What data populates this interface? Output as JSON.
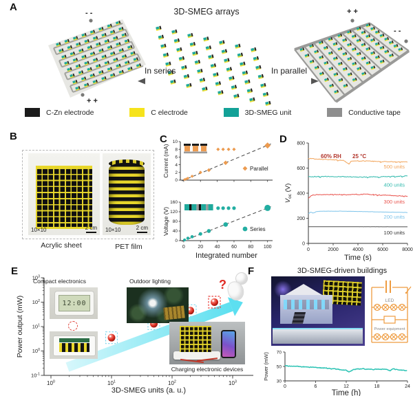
{
  "panel_a": {
    "label": "A",
    "title": "3D-SMEG arrays",
    "left_arrow_label": "In series",
    "right_arrow_label": "In parallel",
    "left_array": {
      "top_terminal": "- -",
      "bottom_terminal": "+ +"
    },
    "right_array": {
      "top_terminal": "+ +",
      "right_terminal": "- -"
    },
    "legend": [
      {
        "label": "C-Zn electrode",
        "color": "#1b1b1b"
      },
      {
        "label": "C electrode",
        "color": "#f6e31c"
      },
      {
        "label": "3D-SMEG unit",
        "color": "#13a197"
      },
      {
        "label": "Conductive tape",
        "color": "#8e8e8e"
      }
    ]
  },
  "panel_b": {
    "label": "B",
    "photos": [
      {
        "grid_label": "10×10",
        "scale_label": "2 cm",
        "caption": "Acrylic sheet"
      },
      {
        "grid_label": "10×10",
        "scale_label": "2 cm",
        "caption": "PET film"
      }
    ]
  },
  "panel_c": {
    "label": "C"
  },
  "panel_d": {
    "label": "D"
  },
  "panel_e": {
    "label": "E",
    "insets": {
      "compact": "Compact electronics",
      "outdoor": "Outdoor lighting",
      "charging": "Charging electronic devices",
      "clock_display": "12:00",
      "question_mark": "?"
    }
  },
  "panel_f": {
    "label": "F",
    "title": "3D-SMEG-driven buildings",
    "circuit": {
      "led_label": "LED",
      "equipment_label": "Power equipment"
    }
  },
  "chart_data": [
    {
      "id": "c-top",
      "type": "scatter",
      "marker": "diamond",
      "color": "#EC9B50",
      "ylabel": "Current (mA)",
      "ylim": [
        0,
        10
      ],
      "yticks": [
        0,
        2,
        4,
        6,
        8,
        10
      ],
      "xlim": [
        -4,
        106
      ],
      "xticks": [
        0,
        20,
        40,
        60,
        80,
        100
      ],
      "points": [
        [
          1,
          0.15
        ],
        [
          3,
          0.3
        ],
        [
          5,
          0.5
        ],
        [
          10,
          1.0
        ],
        [
          20,
          2.0
        ],
        [
          30,
          2.6
        ],
        [
          50,
          4.5
        ],
        [
          100,
          9.0
        ]
      ],
      "trend": [
        [
          -2,
          -0.2
        ],
        [
          104,
          9.4
        ]
      ],
      "legend": "Parallel",
      "ellipsis_markers": {
        "y": 8,
        "x": [
          41,
          47,
          53.5,
          60
        ]
      }
    },
    {
      "id": "c-bottom",
      "type": "scatter",
      "marker": "circle",
      "color": "#23AEA2",
      "ylabel": "Voltage (V)",
      "ylim": [
        0,
        160
      ],
      "yticks": [
        0,
        40,
        80,
        120,
        160
      ],
      "xlim": [
        -4,
        106
      ],
      "xticks": [
        0,
        20,
        40,
        60,
        80,
        100
      ],
      "xlabel": "Integrated number",
      "points": [
        [
          1,
          3
        ],
        [
          5,
          10
        ],
        [
          10,
          16
        ],
        [
          20,
          28
        ],
        [
          30,
          40
        ],
        [
          50,
          67
        ],
        [
          100,
          136
        ]
      ],
      "trend": [
        [
          -2,
          -3
        ],
        [
          104,
          141
        ]
      ],
      "legend": "Series",
      "ellipsis_markers": {
        "y": 135,
        "x": [
          41,
          47,
          53.5,
          60
        ]
      }
    },
    {
      "id": "d",
      "type": "line",
      "ylabel_parts": {
        "pre": "V",
        "sub": "oc",
        "post": " (V)"
      },
      "xlabel": "Time (s)",
      "ylim": [
        0,
        800
      ],
      "yticks": [
        0,
        200,
        400,
        600,
        800
      ],
      "xlim": [
        0,
        8000
      ],
      "xticks": [
        0,
        2000,
        4000,
        6000,
        8000
      ],
      "annotation": {
        "text_rh": "60% RH",
        "text_temp": "25 °C",
        "color": "#B2352B"
      },
      "series": [
        {
          "name": "500 units",
          "color": "#F2A45A",
          "label_v": 598,
          "noise": 4,
          "keypoints": [
            [
              0,
              678
            ],
            [
              1500,
              668
            ],
            [
              2800,
              662
            ],
            [
              3050,
              642
            ],
            [
              3250,
              634
            ],
            [
              3450,
              658
            ],
            [
              4500,
              657
            ],
            [
              6200,
              651
            ],
            [
              8000,
              649
            ]
          ]
        },
        {
          "name": "400 units",
          "color": "#2FB9AC",
          "label_v": 452,
          "noise": 5,
          "keypoints": [
            [
              0,
              531
            ],
            [
              2000,
              534
            ],
            [
              4000,
              527
            ],
            [
              6000,
              532
            ],
            [
              8000,
              537
            ]
          ]
        },
        {
          "name": "300 units",
          "color": "#E9544E",
          "label_v": 318,
          "noise": 5,
          "keypoints": [
            [
              0,
              366
            ],
            [
              250,
              386
            ],
            [
              1500,
              391
            ],
            [
              3000,
              387
            ],
            [
              4600,
              393
            ],
            [
              6000,
              384
            ],
            [
              8000,
              377
            ]
          ]
        },
        {
          "name": "200 units",
          "color": "#7CC3EA",
          "label_v": 196,
          "noise": 1.2,
          "keypoints": [
            [
              0,
              236
            ],
            [
              150,
              252
            ],
            [
              350,
              240
            ],
            [
              600,
              254
            ],
            [
              900,
              256
            ],
            [
              2500,
              257
            ],
            [
              8000,
              246
            ]
          ]
        },
        {
          "name": "100 units",
          "color": "#4B4B4B",
          "label_v": 72,
          "noise": 0.4,
          "keypoints": [
            [
              0,
              133
            ],
            [
              8000,
              132
            ]
          ]
        }
      ]
    },
    {
      "id": "e",
      "type": "scatter",
      "scale": "log-log",
      "marker": "sphere",
      "color": "#E8423C",
      "ylabel": "Power output (mW)",
      "xlabel": "3D-SMEG units (a. u.)",
      "x_exponents": [
        0,
        1,
        2,
        3
      ],
      "y_exponents": [
        -1,
        0,
        1,
        2,
        3
      ],
      "points": [
        [
          3,
          1
        ],
        [
          10,
          3.5
        ],
        [
          50,
          13
        ],
        [
          200,
          45
        ],
        [
          500,
          100
        ]
      ],
      "highlight_last": true,
      "arrow_color": "#4ADCEE"
    },
    {
      "id": "f",
      "type": "line",
      "color": "#2CC3B4",
      "ylabel": "Power (mW)",
      "xlabel": "Time (h)",
      "ylim": [
        30,
        70
      ],
      "yticks": [
        30,
        50,
        70
      ],
      "xlim": [
        0,
        24
      ],
      "xticks": [
        0,
        6,
        12,
        18,
        24
      ],
      "noise": 0.9,
      "keypoints": [
        [
          0,
          51
        ],
        [
          2,
          50.2
        ],
        [
          4,
          49.2
        ],
        [
          6,
          48.6
        ],
        [
          8,
          47.6
        ],
        [
          10,
          46.2
        ],
        [
          12,
          44.6
        ],
        [
          12.5,
          41.8
        ],
        [
          13,
          44.4
        ],
        [
          14,
          46.6
        ],
        [
          16,
          46.4
        ],
        [
          18,
          46
        ],
        [
          19.5,
          46.4
        ],
        [
          20.5,
          43.8
        ],
        [
          21,
          46.6
        ],
        [
          22,
          45.4
        ],
        [
          23,
          45
        ],
        [
          24,
          43.6
        ]
      ]
    }
  ]
}
